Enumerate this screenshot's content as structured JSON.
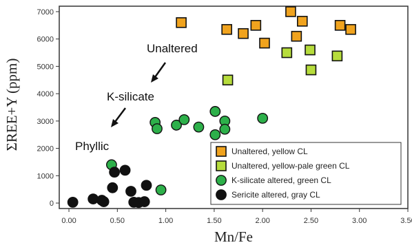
{
  "chart_data": {
    "type": "scatter",
    "title": "",
    "xlabel": "Mn/Fe",
    "ylabel": "ΣREE+Y (ppm)",
    "xlim": [
      -0.1,
      3.5
    ],
    "ylim": [
      -200,
      7200
    ],
    "xticks": [
      "0.00",
      "0.50",
      "1.00",
      "1.50",
      "2.00",
      "2.50",
      "3.00",
      "3.50"
    ],
    "yticks": [
      "0",
      "1000",
      "2000",
      "3000",
      "4000",
      "5000",
      "6000",
      "7000"
    ],
    "grid": false,
    "legend_position": "bottom-right",
    "series": [
      {
        "name": "Unaltered, yellow CL",
        "marker": "square",
        "color": "#F0A31E",
        "points": [
          [
            1.16,
            6600
          ],
          [
            1.63,
            6350
          ],
          [
            1.8,
            6200
          ],
          [
            1.93,
            6500
          ],
          [
            2.02,
            5850
          ],
          [
            2.29,
            7000
          ],
          [
            2.35,
            6100
          ],
          [
            2.41,
            6650
          ],
          [
            2.8,
            6500
          ],
          [
            2.91,
            6350
          ]
        ]
      },
      {
        "name": "Unaltered, yellow-pale green CL",
        "marker": "square",
        "color": "#B6DC3C",
        "points": [
          [
            1.64,
            4500
          ],
          [
            2.25,
            5500
          ],
          [
            2.49,
            5600
          ],
          [
            2.5,
            4870
          ],
          [
            2.77,
            5380
          ]
        ]
      },
      {
        "name": "K-silicate altered, green CL",
        "marker": "circle",
        "color": "#2DB04A",
        "points": [
          [
            0.44,
            1400
          ],
          [
            0.89,
            2950
          ],
          [
            0.91,
            2720
          ],
          [
            1.11,
            2850
          ],
          [
            1.19,
            3050
          ],
          [
            1.34,
            2780
          ],
          [
            1.51,
            3350
          ],
          [
            1.51,
            2500
          ],
          [
            1.61,
            3000
          ],
          [
            1.61,
            2700
          ],
          [
            2.0,
            3100
          ],
          [
            0.95,
            480
          ]
        ]
      },
      {
        "name": "Sericite altered, gray CL",
        "marker": "circle",
        "color": "#111111",
        "points": [
          [
            0.04,
            30
          ],
          [
            0.25,
            150
          ],
          [
            0.34,
            100
          ],
          [
            0.36,
            50
          ],
          [
            0.45,
            560
          ],
          [
            0.47,
            1130
          ],
          [
            0.58,
            1200
          ],
          [
            0.64,
            430
          ],
          [
            0.67,
            30
          ],
          [
            0.72,
            20
          ],
          [
            0.8,
            650
          ],
          [
            0.78,
            50
          ]
        ]
      }
    ],
    "annotations": [
      {
        "text": "Unaltered"
      },
      {
        "text": "K-silicate"
      },
      {
        "text": "Phyllic"
      }
    ]
  }
}
